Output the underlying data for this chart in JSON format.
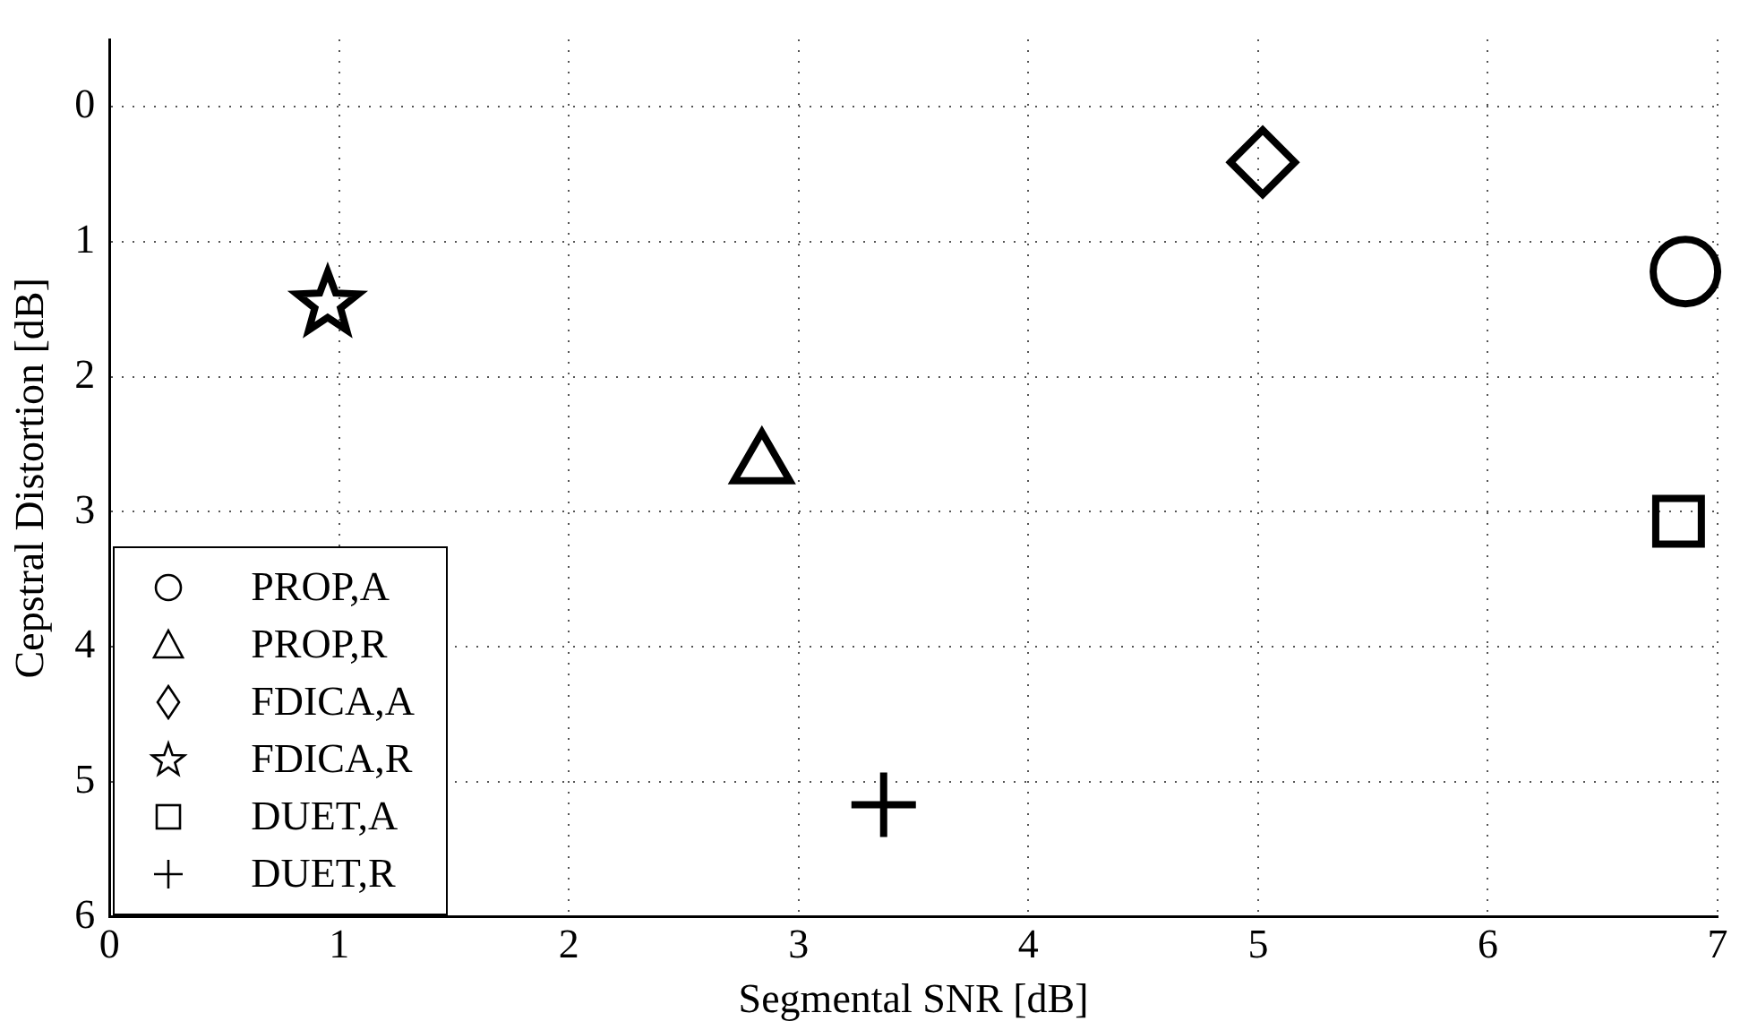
{
  "chart_data": {
    "type": "scatter",
    "xlabel": "Segmental SNR [dB]",
    "ylabel": "Cepstral Distortion [dB]",
    "xlim": [
      0,
      7
    ],
    "xticks": [
      0,
      1,
      2,
      3,
      4,
      5,
      6,
      7
    ],
    "ylim": [
      6,
      -0.5
    ],
    "yticks": [
      0,
      1,
      2,
      3,
      4,
      5,
      6
    ],
    "grid": true,
    "legend": "bottom left",
    "series": [
      {
        "name": "PROP,A",
        "color": "#000000",
        "marker": "circle",
        "x": [
          6.86
        ],
        "values": [
          1.22
        ]
      },
      {
        "name": "PROP,R",
        "color": "#000000",
        "marker": "triangle",
        "x": [
          2.84
        ],
        "values": [
          2.65
        ]
      },
      {
        "name": "FDICA,A",
        "color": "#000000",
        "marker": "diamond",
        "x": [
          5.02
        ],
        "values": [
          0.41
        ]
      },
      {
        "name": "FDICA,R",
        "color": "#000000",
        "marker": "star",
        "x": [
          0.95
        ],
        "values": [
          1.46
        ]
      },
      {
        "name": "DUET,A",
        "color": "#000000",
        "marker": "square",
        "x": [
          6.83
        ],
        "values": [
          3.07
        ]
      },
      {
        "name": "DUET,R",
        "color": "#000000",
        "marker": "cross",
        "x": [
          3.37
        ],
        "values": [
          5.17
        ]
      }
    ]
  }
}
